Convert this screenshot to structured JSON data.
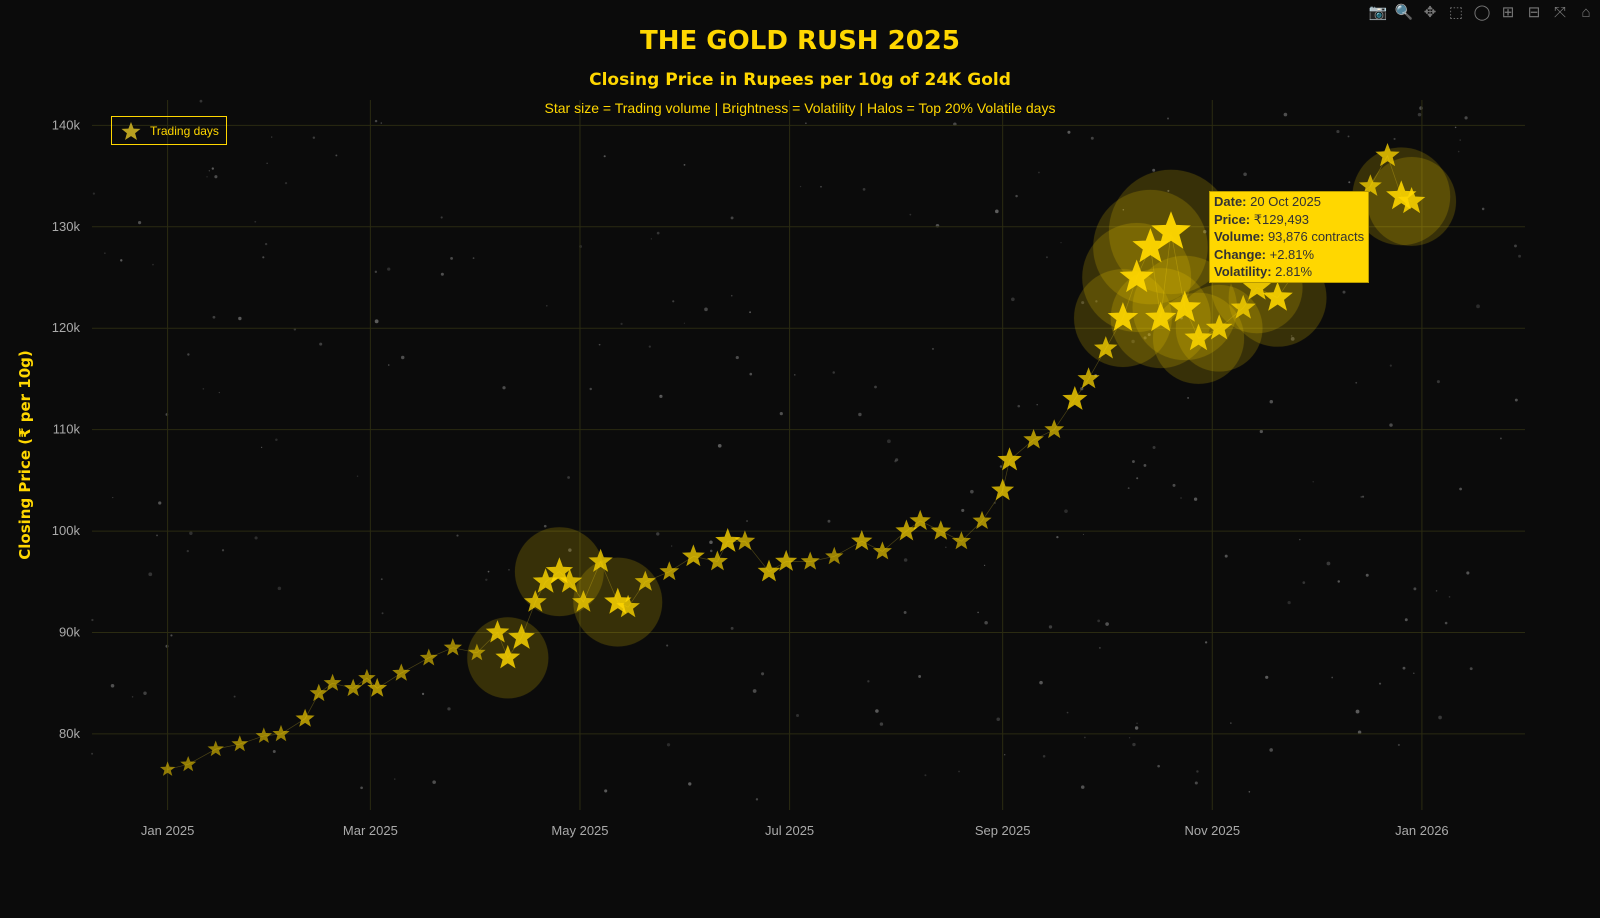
{
  "title": "THE GOLD RUSH 2025",
  "subtitle": "Closing Price in Rupees per 10g of 24K Gold",
  "caption": "Star size = Trading volume | Brightness = Volatility | Halos = Top 20% Volatile days",
  "toolbar": [
    {
      "icon": "camera-icon",
      "glyph": "📷"
    },
    {
      "icon": "zoom-icon",
      "glyph": "🔍"
    },
    {
      "icon": "pan-icon",
      "glyph": "✥"
    },
    {
      "icon": "box-select-icon",
      "glyph": "⬚"
    },
    {
      "icon": "lasso-icon",
      "glyph": "◯"
    },
    {
      "icon": "zoom-in-icon",
      "glyph": "⊞"
    },
    {
      "icon": "zoom-out-icon",
      "glyph": "⊟"
    },
    {
      "icon": "autoscale-icon",
      "glyph": "⤧"
    },
    {
      "icon": "reset-axes-icon",
      "glyph": "⌂"
    }
  ],
  "tooltip": {
    "date_label": "Date:",
    "date": "20 Oct 2025",
    "price_label": "Price:",
    "price": "₹129,493",
    "volume_label": "Volume:",
    "volume": "93,876 contracts",
    "change_label": "Change:",
    "change": "+2.81%",
    "volatility_label": "Volatility:",
    "volatility": "2.81%"
  },
  "colors": {
    "accent": "#FFD700",
    "background": "#0b0b0b",
    "grid": "#2b2b12"
  },
  "chart_data": {
    "type": "scatter",
    "marker": "star",
    "title": "THE GOLD RUSH 2025",
    "xlabel": "",
    "ylabel": "Closing Price (₹ per 10g)",
    "legend": {
      "entries": [
        "Trading days"
      ],
      "placement": "top-left"
    },
    "grid": true,
    "xlim": [
      "2024-12-10",
      "2026-01-31"
    ],
    "ylim": [
      72500,
      142500
    ],
    "xticks": [
      {
        "date": "2025-01-01",
        "label": "Jan 2025"
      },
      {
        "date": "2025-03-01",
        "label": "Mar 2025"
      },
      {
        "date": "2025-05-01",
        "label": "May 2025"
      },
      {
        "date": "2025-07-01",
        "label": "Jul 2025"
      },
      {
        "date": "2025-09-01",
        "label": "Sep 2025"
      },
      {
        "date": "2025-11-01",
        "label": "Nov 2025"
      },
      {
        "date": "2026-01-01",
        "label": "Jan 2026"
      }
    ],
    "yticks": [
      {
        "value": 80000,
        "label": "80k"
      },
      {
        "value": 90000,
        "label": "90k"
      },
      {
        "value": 100000,
        "label": "100k"
      },
      {
        "value": 110000,
        "label": "110k"
      },
      {
        "value": 120000,
        "label": "120k"
      },
      {
        "value": 130000,
        "label": "130k"
      },
      {
        "value": 140000,
        "label": "140k"
      }
    ],
    "points": [
      [
        "2025-01-01",
        76500,
        30000,
        0.5
      ],
      [
        "2025-01-07",
        77000,
        32000,
        0.6
      ],
      [
        "2025-01-15",
        78500,
        33000,
        0.6
      ],
      [
        "2025-01-22",
        79000,
        34000,
        0.7
      ],
      [
        "2025-01-29",
        79800,
        33000,
        0.6
      ],
      [
        "2025-02-03",
        80000,
        35000,
        0.7
      ],
      [
        "2025-02-10",
        81500,
        40000,
        1.2
      ],
      [
        "2025-02-14",
        84000,
        38000,
        0.9
      ],
      [
        "2025-02-18",
        85000,
        37000,
        0.8
      ],
      [
        "2025-02-24",
        84500,
        38000,
        0.9
      ],
      [
        "2025-02-28",
        85500,
        36000,
        0.8
      ],
      [
        "2025-03-03",
        84500,
        42000,
        1.2
      ],
      [
        "2025-03-10",
        86000,
        38000,
        0.8
      ],
      [
        "2025-03-18",
        87500,
        37000,
        0.7
      ],
      [
        "2025-03-25",
        88500,
        38000,
        0.8
      ],
      [
        "2025-04-01",
        88000,
        36000,
        0.7
      ],
      [
        "2025-04-07",
        90000,
        52000,
        1.9
      ],
      [
        "2025-04-10",
        87500,
        55000,
        2.1
      ],
      [
        "2025-04-14",
        89500,
        60000,
        2.0
      ],
      [
        "2025-04-18",
        93000,
        50000,
        1.7
      ],
      [
        "2025-04-21",
        95000,
        58000,
        2.0
      ],
      [
        "2025-04-25",
        96000,
        62000,
        2.1
      ],
      [
        "2025-04-28",
        95000,
        56000,
        1.9
      ],
      [
        "2025-05-02",
        93000,
        50000,
        1.6
      ],
      [
        "2025-05-07",
        97000,
        54000,
        1.8
      ],
      [
        "2025-05-12",
        93000,
        62000,
        2.2
      ],
      [
        "2025-05-15",
        92500,
        52000,
        1.8
      ],
      [
        "2025-05-20",
        95000,
        46000,
        1.4
      ],
      [
        "2025-05-27",
        96000,
        42000,
        1.2
      ],
      [
        "2025-06-03",
        97500,
        50000,
        1.6
      ],
      [
        "2025-06-10",
        97000,
        45000,
        1.3
      ],
      [
        "2025-06-13",
        99000,
        56000,
        1.9
      ],
      [
        "2025-06-18",
        99000,
        44000,
        1.2
      ],
      [
        "2025-06-25",
        96000,
        50000,
        1.6
      ],
      [
        "2025-06-30",
        97000,
        48000,
        1.5
      ],
      [
        "2025-07-07",
        97000,
        40000,
        1.0
      ],
      [
        "2025-07-14",
        97500,
        38000,
        0.8
      ],
      [
        "2025-07-22",
        99000,
        46000,
        1.3
      ],
      [
        "2025-07-28",
        98000,
        40000,
        1.0
      ],
      [
        "2025-08-04",
        100000,
        48000,
        1.4
      ],
      [
        "2025-08-08",
        101000,
        46000,
        1.3
      ],
      [
        "2025-08-14",
        100000,
        44000,
        1.2
      ],
      [
        "2025-08-20",
        99000,
        40000,
        0.9
      ],
      [
        "2025-08-26",
        101000,
        40000,
        1.0
      ],
      [
        "2025-09-01",
        104000,
        50000,
        1.6
      ],
      [
        "2025-09-03",
        107000,
        54000,
        1.8
      ],
      [
        "2025-09-10",
        109000,
        44000,
        1.2
      ],
      [
        "2025-09-16",
        110000,
        42000,
        1.1
      ],
      [
        "2025-09-22",
        113000,
        56000,
        1.9
      ],
      [
        "2025-09-26",
        115000,
        48000,
        1.5
      ],
      [
        "2025-10-01",
        118000,
        52000,
        1.7
      ],
      [
        "2025-10-06",
        121000,
        70000,
        2.5
      ],
      [
        "2025-10-10",
        125000,
        80000,
        2.6
      ],
      [
        "2025-10-14",
        128000,
        85000,
        2.7
      ],
      [
        "2025-10-17",
        121000,
        72000,
        2.4
      ],
      [
        "2025-10-20",
        129493,
        93876,
        2.81
      ],
      [
        "2025-10-24",
        122000,
        76000,
        2.5
      ],
      [
        "2025-10-28",
        119000,
        64000,
        2.2
      ],
      [
        "2025-11-03",
        120000,
        60000,
        2.1
      ],
      [
        "2025-11-10",
        122000,
        56000,
        1.8
      ],
      [
        "2025-11-14",
        124000,
        64000,
        2.3
      ],
      [
        "2025-11-20",
        123000,
        70000,
        2.4
      ],
      [
        "2025-11-26",
        126000,
        50000,
        1.5
      ],
      [
        "2025-12-03",
        130000,
        46000,
        1.3
      ],
      [
        "2025-12-10",
        132000,
        44000,
        1.2
      ],
      [
        "2025-12-17",
        134000,
        50000,
        1.6
      ],
      [
        "2025-12-22",
        137000,
        54000,
        1.7
      ],
      [
        "2025-12-26",
        133000,
        70000,
        2.4
      ],
      [
        "2025-12-29",
        132500,
        62000,
        2.2
      ]
    ],
    "point_fields": [
      "date",
      "close_price",
      "volume",
      "volatility_pct"
    ]
  }
}
